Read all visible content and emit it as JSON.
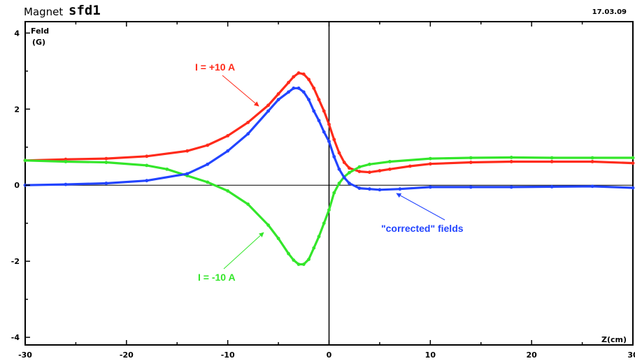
{
  "header": {
    "label": "Magnet",
    "magnet_name": "sfd1",
    "date": "17.03.09"
  },
  "chart_data": {
    "type": "line",
    "ylabel": "Feld",
    "yunit": "(G)",
    "xlabel": "Z(cm)",
    "xlim": [
      -30,
      30
    ],
    "ylim": [
      -4.2,
      4.3
    ],
    "xticks": [
      -30,
      -20,
      -10,
      0,
      10,
      20,
      30
    ],
    "yticks": [
      -4,
      -2,
      0,
      2,
      4
    ],
    "grid": false,
    "annotations": [
      {
        "text": "I = +10 A",
        "color": "#ff2a1a",
        "target": [
          -7,
          2.0
        ]
      },
      {
        "text": "I = -10 A",
        "color": "#33e62a",
        "target": [
          -6.5,
          -1.2
        ]
      },
      {
        "text": "\"corrected\" fields",
        "color": "#2244ff",
        "target": [
          6.5,
          -0.2
        ]
      }
    ],
    "series": [
      {
        "color": "#ff2a1a",
        "x": [
          -30,
          -26,
          -22,
          -18,
          -14,
          -12,
          -10,
          -8,
          -6,
          -5,
          -4,
          -3.5,
          -3,
          -2.5,
          -2,
          -1.5,
          -1,
          -0.5,
          0,
          0.5,
          1,
          1.5,
          2,
          3,
          4,
          5,
          6,
          8,
          10,
          14,
          18,
          22,
          26,
          30
        ],
        "values": [
          0.65,
          0.68,
          0.7,
          0.76,
          0.9,
          1.05,
          1.3,
          1.65,
          2.1,
          2.4,
          2.7,
          2.85,
          2.95,
          2.92,
          2.78,
          2.55,
          2.25,
          1.95,
          1.6,
          1.2,
          0.85,
          0.6,
          0.45,
          0.36,
          0.34,
          0.38,
          0.42,
          0.5,
          0.56,
          0.6,
          0.62,
          0.62,
          0.62,
          0.58
        ]
      },
      {
        "color": "#33e62a",
        "x": [
          -30,
          -26,
          -22,
          -18,
          -16,
          -14,
          -12,
          -10,
          -8,
          -6,
          -5,
          -4,
          -3.5,
          -3,
          -2.5,
          -2,
          -1.5,
          -1,
          -0.5,
          0,
          0.5,
          1,
          1.5,
          2,
          3,
          4,
          6,
          10,
          14,
          18,
          22,
          26,
          30
        ],
        "values": [
          0.65,
          0.62,
          0.6,
          0.52,
          0.42,
          0.25,
          0.08,
          -0.15,
          -0.5,
          -1.05,
          -1.4,
          -1.8,
          -1.97,
          -2.08,
          -2.08,
          -1.95,
          -1.65,
          -1.35,
          -1.0,
          -0.65,
          -0.2,
          0.05,
          0.22,
          0.33,
          0.48,
          0.55,
          0.62,
          0.7,
          0.72,
          0.73,
          0.72,
          0.72,
          0.72
        ]
      },
      {
        "color": "#2244ff",
        "x": [
          -30,
          -26,
          -22,
          -18,
          -14,
          -12,
          -10,
          -8,
          -6,
          -5,
          -4,
          -3.5,
          -3,
          -2.5,
          -2,
          -1.5,
          -1,
          -0.5,
          0,
          0.5,
          1,
          1.5,
          2,
          3,
          4,
          5,
          7,
          10,
          14,
          18,
          22,
          26,
          30
        ],
        "values": [
          0.0,
          0.02,
          0.05,
          0.12,
          0.3,
          0.55,
          0.9,
          1.35,
          1.95,
          2.25,
          2.45,
          2.55,
          2.55,
          2.45,
          2.25,
          1.95,
          1.7,
          1.4,
          1.15,
          0.75,
          0.42,
          0.2,
          0.05,
          -0.08,
          -0.1,
          -0.12,
          -0.1,
          -0.05,
          -0.05,
          -0.05,
          -0.04,
          -0.03,
          -0.07
        ]
      }
    ]
  }
}
